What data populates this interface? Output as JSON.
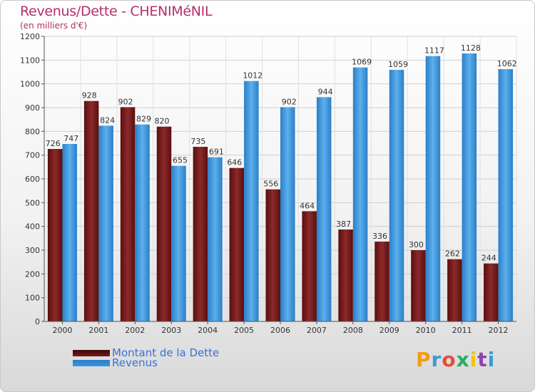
{
  "chart_data": {
    "type": "bar",
    "title": "Revenus/Dette - CHENIMéNIL",
    "subtitle": "(en milliers d'€)",
    "categories": [
      "2000",
      "2001",
      "2002",
      "2003",
      "2004",
      "2005",
      "2006",
      "2007",
      "2008",
      "2009",
      "2010",
      "2011",
      "2012"
    ],
    "series": [
      {
        "name": "Montant de la Dette",
        "color": "#7a1a1a",
        "values": [
          726,
          928,
          902,
          820,
          735,
          646,
          556,
          464,
          387,
          336,
          300,
          262,
          244
        ]
      },
      {
        "name": "Revenus",
        "color": "#3a96e0",
        "values": [
          747,
          824,
          829,
          655,
          691,
          1012,
          902,
          944,
          1069,
          1059,
          1117,
          1128,
          1062
        ]
      }
    ],
    "ylim": [
      0,
      1200
    ],
    "yticks": [
      0,
      100,
      200,
      300,
      400,
      500,
      600,
      700,
      800,
      900,
      1000,
      1100,
      1200
    ],
    "grid": true,
    "legend_position": "bottom-left"
  },
  "logo": {
    "letters": [
      "P",
      "r",
      "o",
      "x",
      "i",
      "t",
      "i"
    ],
    "colors": [
      "#f39c12",
      "#3a9ad9",
      "#e74c3c",
      "#27ae60",
      "#f1c40f",
      "#8e44ad",
      "#3a9ad9"
    ]
  }
}
